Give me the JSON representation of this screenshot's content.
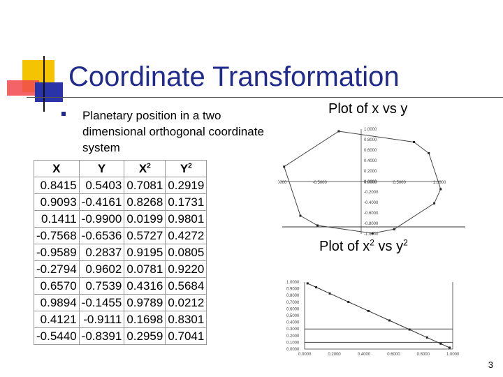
{
  "slide": {
    "title": "Coordinate Transformation",
    "bullet": "Planetary position in a two dimensional orthogonal coordinate system",
    "plot1_label": "Plot of x vs y",
    "plot2_label_parts": [
      "Plot of x",
      "2",
      " vs y",
      "2"
    ],
    "page_number": "3"
  },
  "table": {
    "headers": [
      {
        "base": "X",
        "sup": ""
      },
      {
        "base": "Y",
        "sup": ""
      },
      {
        "base": "X",
        "sup": "2"
      },
      {
        "base": "Y",
        "sup": "2"
      }
    ],
    "rows": [
      [
        "0.8415",
        "0.5403",
        "0.7081",
        "0.2919"
      ],
      [
        "0.9093",
        "-0.4161",
        "0.8268",
        "0.1731"
      ],
      [
        "0.1411",
        "-0.9900",
        "0.0199",
        "0.9801"
      ],
      [
        "-0.7568",
        "-0.6536",
        "0.5727",
        "0.4272"
      ],
      [
        "-0.9589",
        "0.2837",
        "0.9195",
        "0.0805"
      ],
      [
        "-0.2794",
        "0.9602",
        "0.0781",
        "0.9220"
      ],
      [
        "0.6570",
        "0.7539",
        "0.4316",
        "0.5684"
      ],
      [
        "0.9894",
        "-0.1455",
        "0.9789",
        "0.0212"
      ],
      [
        "0.4121",
        "-0.9111",
        "0.1698",
        "0.8301"
      ],
      [
        "-0.5440",
        "-0.8391",
        "0.2959",
        "0.7041"
      ]
    ]
  },
  "chart_data": [
    {
      "type": "scatter",
      "xlim": [
        -1,
        1
      ],
      "ylim": [
        -1,
        1
      ],
      "x_ticks": [
        "-1.0000",
        "-0.5000",
        "0.0000",
        "0.5000",
        "1.0000"
      ],
      "y_ticks": [
        "1.0000",
        "0.8000",
        "0.6000",
        "0.4000",
        "0.2000",
        "0.0000",
        "-0.2000",
        "-0.4000",
        "-0.6000",
        "-0.8000",
        "-1.0000"
      ],
      "x": [
        0.8415,
        0.9093,
        0.1411,
        -0.7568,
        -0.9589,
        -0.2794,
        0.657,
        0.9894,
        0.4121,
        -0.544
      ],
      "y": [
        0.5403,
        -0.4161,
        -0.99,
        -0.6536,
        0.2837,
        0.9602,
        0.7539,
        -0.1455,
        -0.9111,
        -0.8391
      ]
    },
    {
      "type": "line",
      "xlim": [
        0,
        1
      ],
      "ylim": [
        0,
        1
      ],
      "x_ticks": [
        "0.0000",
        "0.2000",
        "0.4000",
        "0.6000",
        "0.8000",
        "1.0000"
      ],
      "y_ticks": [
        "1.0000",
        "0.9000",
        "0.8000",
        "0.7000",
        "0.6000",
        "0.5000",
        "0.4000",
        "0.3000",
        "0.2000",
        "0.1000",
        "0.0000"
      ],
      "x": [
        0.0199,
        0.0781,
        0.1698,
        0.2959,
        0.4316,
        0.5727,
        0.7081,
        0.8268,
        0.9195,
        0.9789
      ],
      "y": [
        0.9801,
        0.922,
        0.8301,
        0.7041,
        0.5684,
        0.4272,
        0.2919,
        0.1731,
        0.0805,
        0.0212
      ]
    }
  ]
}
